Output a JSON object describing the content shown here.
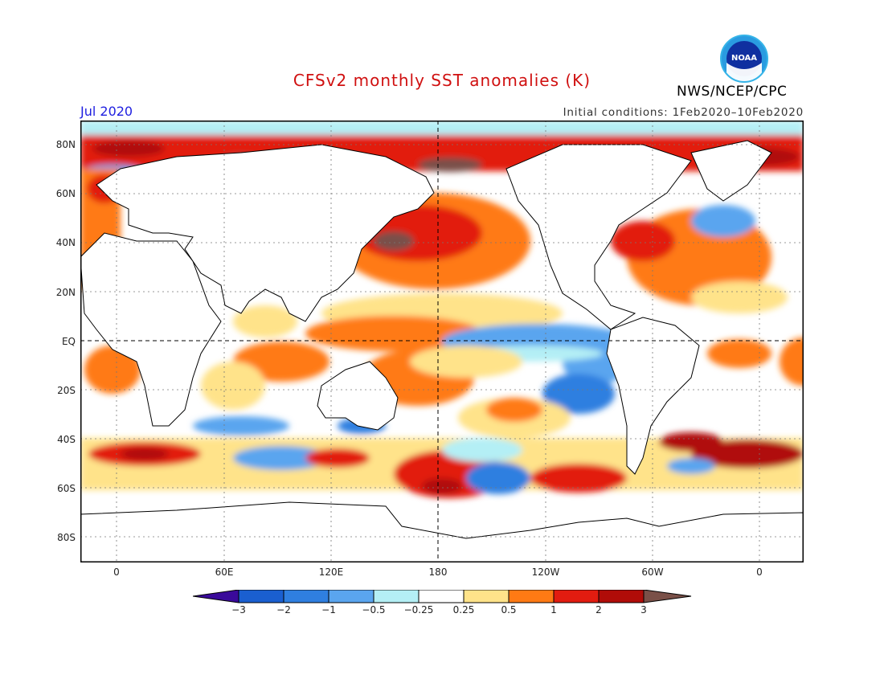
{
  "header": {
    "title": "CFSv2 monthly SST anomalies (K)",
    "agency": "NWS/NCEP/CPC",
    "period": "Jul 2020",
    "initial_conditions": "Initial conditions: 1Feb2020–10Feb2020",
    "logo_text": "NOAA"
  },
  "axes": {
    "y_labels": [
      "80N",
      "60N",
      "40N",
      "20N",
      "EQ",
      "20S",
      "40S",
      "60S",
      "80S"
    ],
    "x_labels": [
      "0",
      "60E",
      "120E",
      "180",
      "120W",
      "60W",
      "0"
    ]
  },
  "colorbar": {
    "labels": [
      "−3",
      "−2",
      "−1",
      "−0.5",
      "−0.25",
      "0.25",
      "0.5",
      "1",
      "2",
      "3"
    ],
    "colors": [
      "#3a0a9a",
      "#1a5fd0",
      "#2f7fe0",
      "#5aa5ef",
      "#b4eff5",
      "#ffffff",
      "#ffe38a",
      "#ff7a14",
      "#e21c10",
      "#b00c08",
      "#7a5048"
    ]
  },
  "map_colors": {
    "land": "#ffffff",
    "coast": "#000000",
    "warm1": "#ffe38a",
    "warm2": "#ff7a14",
    "warm3": "#e21c10",
    "warm4": "#b00c08",
    "warm5": "#7a5048",
    "cool1": "#b4eff5",
    "cool2": "#5aa5ef",
    "cool3": "#2f7fe0"
  }
}
